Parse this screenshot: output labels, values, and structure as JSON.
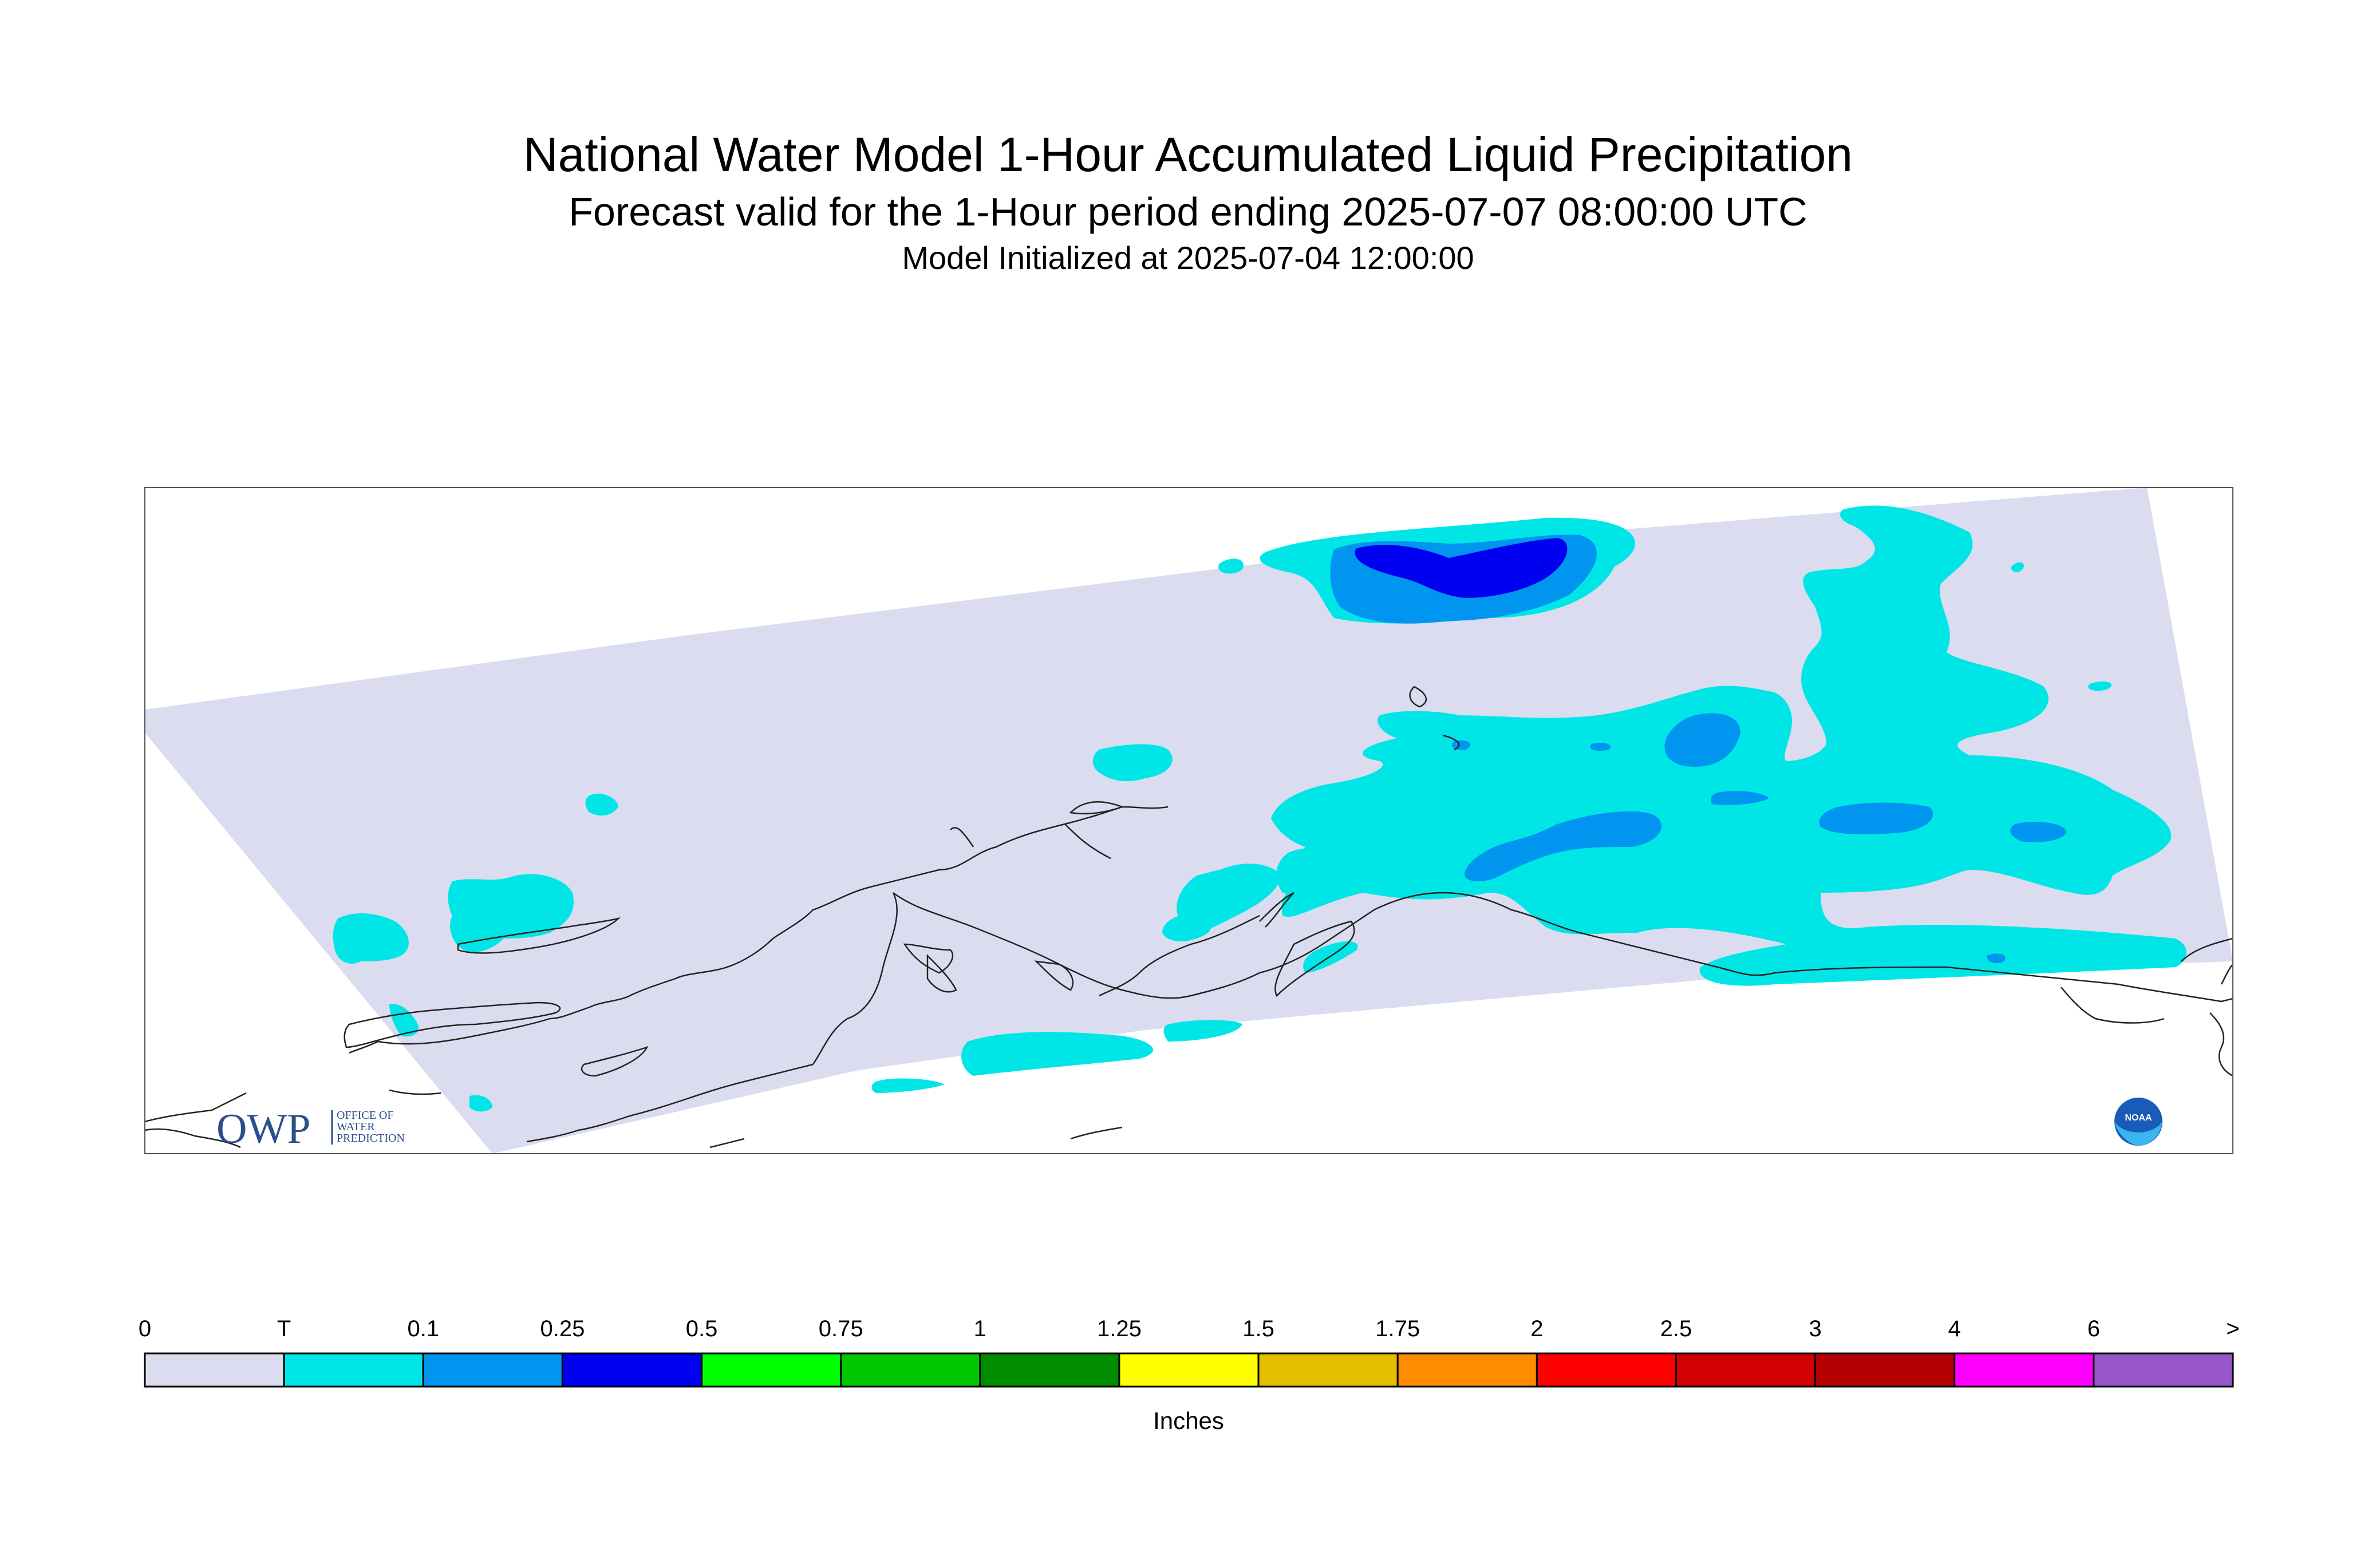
{
  "title": "National Water Model 1-Hour Accumulated Liquid Precipitation",
  "subtitle": "Forecast valid for the 1-Hour period ending 2025-07-07 08:00:00 UTC",
  "init_line": "Model Initialized at 2025-07-04 12:00:00",
  "logos": {
    "owp_text": "OWP",
    "owp_sub": [
      "OFFICE OF",
      "WATER",
      "PREDICTION"
    ],
    "noaa_text": "NOAA"
  },
  "legend": {
    "unit_label": "Inches",
    "tick_labels": [
      "0",
      "T",
      "0.1",
      "0.25",
      "0.5",
      "0.75",
      "1",
      "1.25",
      "1.5",
      "1.75",
      "2",
      "2.5",
      "3",
      "4",
      "6",
      ">"
    ],
    "colors": [
      "#dcdcf0",
      "#00e6e6",
      "#0096f0",
      "#0000f0",
      "#00ff00",
      "#00c800",
      "#008c00",
      "#ffff00",
      "#e6be00",
      "#ff8c00",
      "#ff0000",
      "#d20000",
      "#b40000",
      "#ff00ff",
      "#9655c8"
    ]
  },
  "map": {
    "region": "Alaska",
    "background_color": "#dcdcf0",
    "precip_colors": {
      "trace": "#00e6e6",
      "light": "#0096f0",
      "moderate": "#0000f0"
    }
  }
}
